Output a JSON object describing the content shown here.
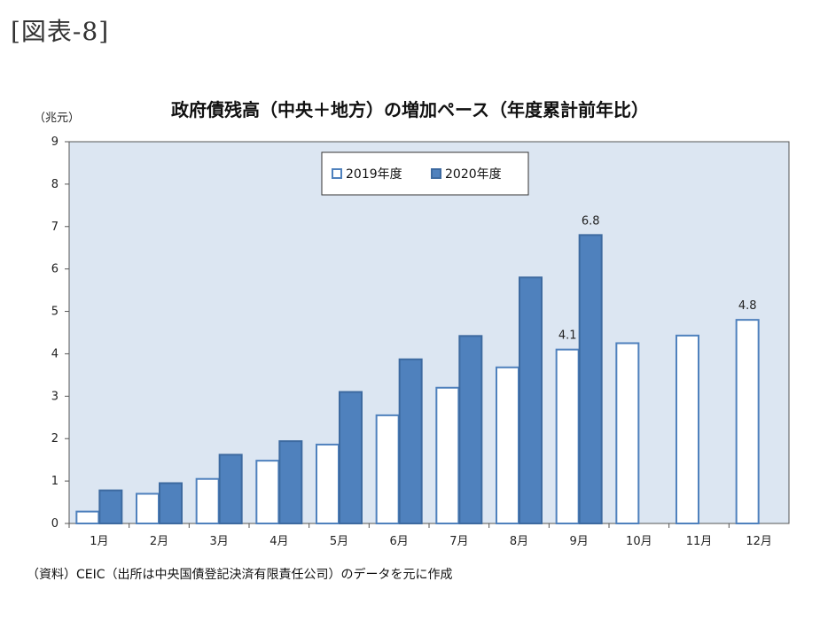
{
  "figure_label": "[図表-8]",
  "source_note": "（資料）CEIC（出所は中央国債登記決済有限責任公司）のデータを元に作成",
  "chart_data": {
    "type": "bar",
    "title": "政府債残高（中央＋地方）の増加ペース（年度累計前年比）",
    "ylabel": "（兆元）",
    "xlabel": "",
    "ylim": [
      0,
      9
    ],
    "yticks": [
      0,
      1,
      2,
      3,
      4,
      5,
      6,
      7,
      8,
      9
    ],
    "categories": [
      "1月",
      "2月",
      "3月",
      "4月",
      "5月",
      "6月",
      "7月",
      "8月",
      "9月",
      "10月",
      "11月",
      "12月"
    ],
    "series": [
      {
        "name": "2019年度",
        "color": "#ffffff",
        "edge": "#4f81bd",
        "values": [
          0.28,
          0.7,
          1.05,
          1.48,
          1.86,
          2.55,
          3.2,
          3.68,
          4.1,
          4.25,
          4.43,
          4.8
        ]
      },
      {
        "name": "2020年度",
        "color": "#4f81bd",
        "edge": "#3d6aa0",
        "values": [
          0.78,
          0.95,
          1.62,
          1.94,
          3.1,
          3.87,
          4.42,
          5.8,
          6.8,
          null,
          null,
          null
        ]
      }
    ],
    "data_labels": [
      {
        "series": 0,
        "index": 8,
        "text": "4.1"
      },
      {
        "series": 1,
        "index": 8,
        "text": "6.8"
      },
      {
        "series": 0,
        "index": 11,
        "text": "4.8"
      }
    ],
    "plot_background": "#dce6f2",
    "grid": false,
    "legend_position": "top-center"
  }
}
